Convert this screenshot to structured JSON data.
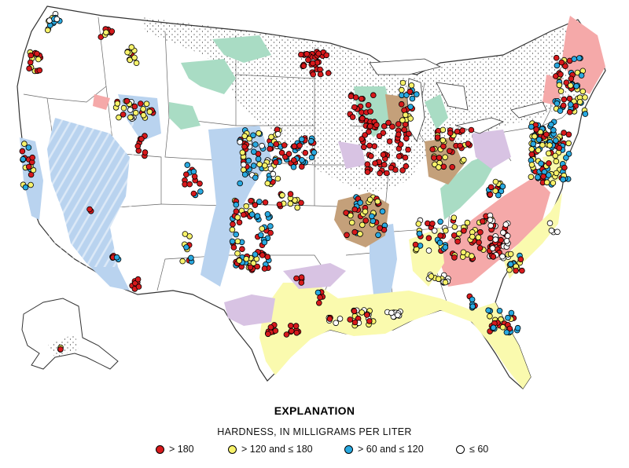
{
  "explanation": {
    "title": "EXPLANATION",
    "subtitle": "HARDNESS, IN MILLIGRAMS PER LITER",
    "legend": [
      {
        "label": "> 180",
        "color": "#d7191c"
      },
      {
        "label": "> 120 and ≤ 180",
        "color": "#f7f26a"
      },
      {
        "label": "> 60 and ≤ 120",
        "color": "#29a9e0"
      },
      {
        "label": "≤ 60",
        "color": "#ffffff"
      }
    ]
  },
  "colors": {
    "land": "#ffffff",
    "border": "#555555",
    "aquifer_blue": "#b9d3ef",
    "aquifer_green": "#a9dcc4",
    "aquifer_pink": "#f5a9a9",
    "aquifer_yellow": "#fafaae",
    "aquifer_brown": "#c4a07a",
    "aquifer_purple": "#d8c3e3",
    "glacial_stipple": "#000000"
  },
  "sample_sites": [
    {
      "region": "puget",
      "hardness": "> 60 and ≤ 120"
    },
    {
      "region": "north-rockies",
      "hardness": "> 180"
    },
    {
      "region": "dakota-nebraska",
      "hardness": "> 120 and ≤ 180"
    },
    {
      "region": "texas-coastal",
      "hardness": "≤ 60"
    },
    {
      "region": "northeast",
      "hardness": "> 60 and ≤ 120"
    },
    {
      "region": "southeast-coastal",
      "hardness": "≤ 60"
    }
  ]
}
